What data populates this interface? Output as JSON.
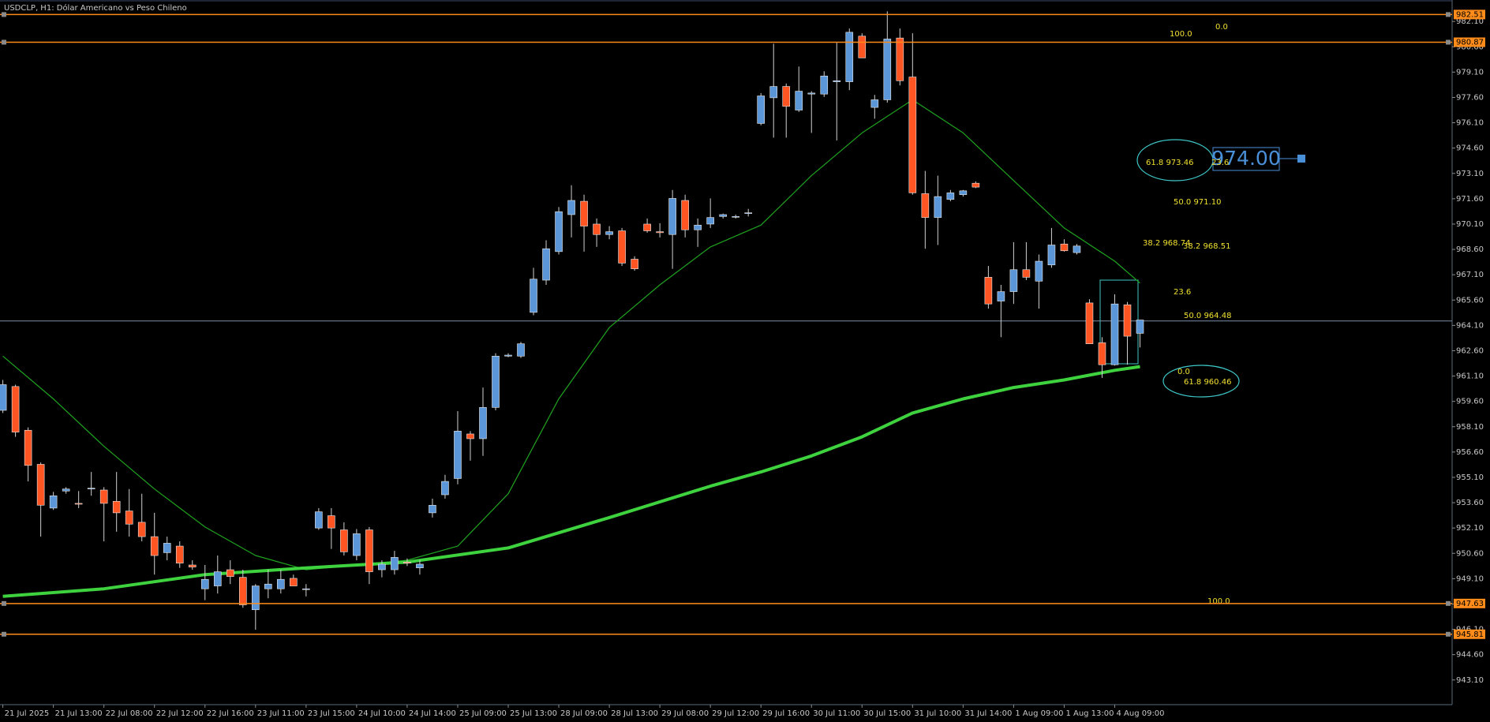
{
  "chart_data": {
    "type": "candlestick",
    "title": "USDCLP, H1:  Dólar Americano vs Peso Chileno",
    "up_color": "#5b97d8",
    "down_color": "#ff5522",
    "wick_color": "#d0d0d0",
    "categories": [
      "21 Jul 2025",
      null,
      null,
      null,
      "21 Jul 13:00",
      null,
      null,
      null,
      "22 Jul 08:00",
      null,
      null,
      null,
      "22 Jul 12:00",
      null,
      null,
      null,
      "22 Jul 16:00",
      null,
      null,
      null,
      "23 Jul 11:00",
      null,
      null,
      null,
      "23 Jul 15:00",
      null,
      null,
      null,
      "24 Jul 10:00",
      null,
      null,
      null,
      "24 Jul 14:00",
      null,
      null,
      null,
      "25 Jul 09:00",
      null,
      null,
      null,
      "25 Jul 13:00",
      null,
      null,
      null,
      "28 Jul 09:00",
      null,
      null,
      null,
      "28 Jul 13:00",
      null,
      null,
      null,
      "29 Jul 08:00",
      null,
      null,
      null,
      "29 Jul 12:00",
      null,
      null,
      null,
      "29 Jul 16:00",
      null,
      null,
      null,
      "30 Jul 11:00",
      null,
      null,
      null,
      "30 Jul 15:00",
      null,
      null,
      null,
      "31 Jul 10:00",
      null,
      null,
      null,
      "31 Jul 14:00",
      null,
      null,
      null,
      "1 Aug 09:00",
      null,
      null,
      null,
      "1 Aug 13:00",
      null,
      null,
      null,
      "4 Aug 09:00",
      null,
      null
    ],
    "open": [
      959.07,
      960.48,
      957.89,
      955.87,
      953.28,
      954.29,
      953.56,
      954.41,
      954.35,
      953.68,
      953.11,
      952.44,
      951.59,
      950.64,
      951.03,
      949.91,
      948.5,
      948.67,
      949.63,
      949.18,
      947.26,
      948.5,
      948.5,
      949.12,
      948.5,
      952.1,
      952.83,
      951.99,
      950.47,
      951.99,
      949.63,
      949.63,
      950.08,
      949.74,
      953.0,
      954.07,
      955.03,
      957.67,
      957.39,
      959.24,
      962.28,
      962.28,
      964.87,
      966.78,
      968.47,
      970.66,
      971.45,
      970.1,
      969.48,
      969.7,
      968.02,
      970.1,
      969.65,
      969.48,
      971.5,
      969.76,
      970.1,
      970.55,
      970.55,
      970.77,
      976.06,
      977.58,
      978.25,
      976.85,
      977.8,
      977.8,
      978.53,
      978.53,
      981.23,
      977.01,
      977.46,
      981.12,
      978.81,
      971.9,
      970.49,
      971.56,
      971.84,
      972.52,
      966.95,
      965.54,
      966.1,
      967.4,
      966.72,
      967.68,
      968.92,
      968.41,
      965.43,
      963.07,
      961.77,
      965.32,
      963.63
    ],
    "high": [
      960.87,
      960.59,
      958.06,
      955.98,
      954.24,
      954.52,
      954.29,
      955.42,
      954.52,
      955.42,
      954.41,
      954.13,
      953.0,
      951.59,
      951.31,
      950.19,
      949.91,
      950.47,
      950.19,
      949.63,
      948.78,
      949.63,
      949.63,
      949.34,
      948.78,
      953.28,
      953.28,
      952.44,
      952.04,
      952.16,
      950.19,
      950.75,
      950.3,
      950.19,
      953.84,
      955.25,
      959.02,
      957.84,
      960.42,
      962.45,
      962.45,
      963.12,
      967.51,
      969.14,
      971.11,
      972.4,
      971.84,
      970.43,
      969.98,
      969.87,
      968.19,
      970.43,
      970.15,
      972.12,
      971.84,
      970.43,
      971.62,
      970.72,
      970.66,
      971.0,
      977.86,
      980.78,
      978.42,
      979.43,
      977.97,
      979.15,
      980.84,
      981.68,
      981.4,
      977.75,
      982.7,
      981.68,
      981.4,
      973.25,
      972.97,
      972.12,
      972.12,
      972.63,
      967.62,
      966.5,
      969.03,
      969.03,
      968.3,
      969.87,
      969.2,
      968.92,
      965.65,
      963.4,
      965.94,
      965.49,
      964.42
    ],
    "low": [
      958.91,
      957.5,
      954.86,
      951.59,
      953.17,
      954.13,
      953.28,
      954.01,
      951.31,
      951.88,
      951.59,
      951.31,
      949.34,
      950.19,
      949.74,
      949.63,
      947.83,
      948.22,
      948.78,
      947.38,
      946.08,
      947.94,
      948.22,
      948.67,
      948.05,
      951.99,
      950.86,
      950.47,
      950.19,
      948.78,
      949.18,
      949.34,
      949.85,
      949.34,
      952.72,
      953.84,
      954.69,
      956.09,
      956.37,
      959.07,
      962.22,
      962.17,
      964.7,
      966.5,
      968.3,
      969.31,
      968.47,
      968.75,
      969.2,
      967.62,
      967.34,
      969.59,
      969.31,
      967.45,
      969.31,
      968.75,
      969.87,
      970.43,
      970.43,
      970.55,
      975.95,
      975.22,
      975.22,
      976.74,
      975.5,
      977.63,
      975.05,
      978.03,
      979.94,
      976.34,
      977.29,
      978.31,
      971.84,
      968.64,
      968.86,
      971.45,
      971.73,
      972.23,
      965.09,
      963.4,
      965.37,
      966.78,
      965.09,
      967.51,
      968.47,
      968.3,
      963.01,
      960.99,
      961.72,
      961.77,
      962.79
    ],
    "close": [
      960.59,
      957.78,
      955.81,
      953.45,
      954.01,
      954.41,
      953.51,
      954.46,
      953.56,
      953.0,
      952.33,
      951.59,
      950.47,
      951.2,
      950.02,
      949.79,
      949.06,
      949.51,
      949.23,
      947.55,
      948.67,
      948.78,
      949.06,
      948.67,
      948.5,
      953.06,
      952.1,
      950.69,
      951.76,
      949.51,
      949.96,
      950.36,
      950.02,
      949.96,
      953.45,
      954.86,
      957.84,
      957.39,
      959.24,
      962.28,
      962.34,
      963.01,
      966.84,
      968.64,
      970.83,
      971.5,
      969.98,
      969.48,
      969.65,
      967.79,
      967.45,
      969.7,
      969.59,
      971.62,
      969.76,
      970.04,
      970.49,
      970.66,
      970.55,
      970.77,
      977.69,
      978.25,
      977.07,
      977.97,
      977.86,
      978.87,
      978.59,
      981.46,
      979.94,
      977.46,
      981.06,
      978.59,
      971.95,
      970.49,
      971.73,
      971.95,
      972.07,
      972.29,
      965.37,
      966.1,
      967.4,
      966.95,
      967.9,
      968.86,
      968.52,
      968.8,
      963.01,
      961.77,
      965.37,
      963.46,
      964.42
    ],
    "ma": [
      {
        "color": "#1fa31f",
        "width": 1.2,
        "x": [
          0,
          4,
          8,
          12,
          16,
          20,
          24,
          28,
          32,
          36,
          40,
          44,
          48,
          52,
          56,
          60,
          64,
          68,
          72,
          76,
          80,
          84,
          88,
          90
        ],
        "values": [
          962.28,
          959.75,
          956.94,
          954.41,
          952.16,
          950.47,
          949.63,
          949.91,
          950.19,
          951.03,
          954.13,
          959.75,
          963.97,
          966.5,
          968.75,
          970.04,
          972.97,
          975.5,
          977.46,
          975.5,
          972.68,
          969.87,
          967.9,
          966.61
        ]
      },
      {
        "color": "#3fd23f",
        "width": 4,
        "x": [
          0,
          8,
          16,
          24,
          32,
          40,
          48,
          56,
          60,
          64,
          68,
          72,
          76,
          80,
          84,
          88,
          90
        ],
        "values": [
          948.05,
          948.5,
          949.34,
          949.74,
          950.08,
          950.92,
          952.72,
          954.58,
          955.42,
          956.37,
          957.5,
          958.91,
          959.75,
          960.42,
          960.87,
          961.44,
          961.66
        ]
      }
    ],
    "ylim": [
      941.64,
      983.37
    ],
    "yticks": [
      {
        "value": 943.1,
        "label": "943.10"
      },
      {
        "value": 944.6,
        "label": "944.60"
      },
      {
        "value": 946.1,
        "label": "946.10"
      },
      {
        "value": 947.6,
        "label": "947.60"
      },
      {
        "value": 949.1,
        "label": "949.10"
      },
      {
        "value": 950.6,
        "label": "950.60"
      },
      {
        "value": 952.1,
        "label": "952.10"
      },
      {
        "value": 953.6,
        "label": "953.60"
      },
      {
        "value": 955.1,
        "label": "955.10"
      },
      {
        "value": 956.6,
        "label": "956.60"
      },
      {
        "value": 958.1,
        "label": "958.10"
      },
      {
        "value": 959.6,
        "label": "959.60"
      },
      {
        "value": 961.1,
        "label": "961.10"
      },
      {
        "value": 962.6,
        "label": "962.60"
      },
      {
        "value": 964.1,
        "label": "964.10"
      },
      {
        "value": 965.6,
        "label": "965.60"
      },
      {
        "value": 967.1,
        "label": "967.10"
      },
      {
        "value": 968.6,
        "label": "968.60"
      },
      {
        "value": 970.1,
        "label": "970.10"
      },
      {
        "value": 971.6,
        "label": "971.60"
      },
      {
        "value": 973.1,
        "label": "973.10"
      },
      {
        "value": 974.6,
        "label": "974.60"
      },
      {
        "value": 976.1,
        "label": "976.10"
      },
      {
        "value": 977.6,
        "label": "977.60"
      },
      {
        "value": 979.1,
        "label": "979.10"
      },
      {
        "value": 980.6,
        "label": "980.60"
      },
      {
        "value": 982.1,
        "label": "982.10"
      }
    ],
    "levels": [
      {
        "value": 982.51,
        "label": "982.51"
      },
      {
        "value": 980.87,
        "label": "980.87"
      },
      {
        "value": 947.63,
        "label": "947.63"
      },
      {
        "value": 945.81,
        "label": "945.81"
      }
    ],
    "level_color": "#ff8c1a",
    "hline": 964.36,
    "annotations": [
      "0.0",
      "100.0",
      "61.8  973.46",
      "23.6",
      "50.0  971.10",
      "38.2  968.74",
      "38.2  968.51",
      "23.6",
      "50.0  964.48",
      "0.0",
      "61.8  960.46",
      "100.0"
    ],
    "price_box": "974.00"
  }
}
